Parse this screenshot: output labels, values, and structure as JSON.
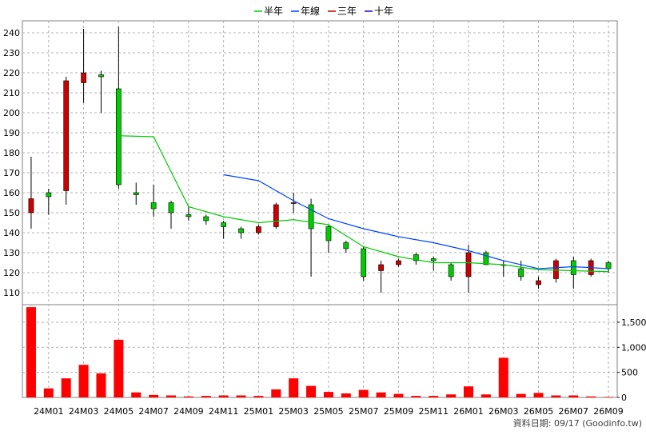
{
  "chart_data": {
    "type": "candlestick",
    "legend": {
      "placement": "top-center",
      "items": [
        {
          "name": "半年",
          "color": "#00cc00"
        },
        {
          "name": "年線",
          "color": "#0044ff"
        },
        {
          "name": "三年",
          "color": "#cc0000"
        },
        {
          "name": "十年",
          "color": "#3300cc"
        }
      ]
    },
    "price_axis": {
      "ylim": [
        104,
        246
      ],
      "ticks": [
        110,
        120,
        130,
        140,
        150,
        160,
        170,
        180,
        190,
        200,
        210,
        220,
        230,
        240
      ],
      "side": "left",
      "grid": true
    },
    "volume_axis": {
      "ylim": [
        0,
        1850
      ],
      "ticks": [
        0,
        500,
        1000,
        1500
      ],
      "tick_labels": [
        "0",
        "500",
        "1,000",
        "1,500"
      ],
      "side": "right",
      "grid": true
    },
    "x_labels": [
      "24M01",
      "24M03",
      "24M05",
      "24M07",
      "24M09",
      "24M11",
      "25M01",
      "25M03",
      "25M05",
      "25M07",
      "25M09",
      "25M11",
      "26M01",
      "26M03",
      "26M05",
      "26M07",
      "26M09"
    ],
    "x_label_slots": [
      1,
      3,
      5,
      7,
      9,
      11,
      13,
      15,
      17,
      19,
      21,
      23,
      25,
      27,
      29,
      31,
      33
    ],
    "slot_count": 34,
    "up_color": "#cc0000",
    "down_color": "#00cc00",
    "candles": [
      {
        "o": 150,
        "h": 178,
        "l": 142,
        "c": 157,
        "v": 1800
      },
      {
        "o": 160,
        "h": 162,
        "l": 149,
        "c": 158,
        "v": 180
      },
      {
        "o": 161,
        "h": 218,
        "l": 154,
        "c": 216,
        "v": 380
      },
      {
        "o": 215,
        "h": 242,
        "l": 205,
        "c": 220,
        "v": 650
      },
      {
        "o": 219,
        "h": 221,
        "l": 200,
        "c": 218,
        "v": 480
      },
      {
        "o": 212,
        "h": 243,
        "l": 162,
        "c": 164,
        "v": 1150
      },
      {
        "o": 160,
        "h": 165,
        "l": 154,
        "c": 159,
        "v": 100
      },
      {
        "o": 155,
        "h": 164,
        "l": 148,
        "c": 152,
        "v": 50
      },
      {
        "o": 155,
        "h": 156,
        "l": 142,
        "c": 150,
        "v": 40
      },
      {
        "o": 149,
        "h": 153,
        "l": 146,
        "c": 148,
        "v": 20
      },
      {
        "o": 148,
        "h": 149,
        "l": 144,
        "c": 146,
        "v": 30
      },
      {
        "o": 145,
        "h": 146,
        "l": 137,
        "c": 143,
        "v": 40
      },
      {
        "o": 142,
        "h": 143,
        "l": 137,
        "c": 140,
        "v": 40
      },
      {
        "o": 140,
        "h": 144,
        "l": 139,
        "c": 143,
        "v": 30
      },
      {
        "o": 143,
        "h": 155,
        "l": 142,
        "c": 154,
        "v": 160
      },
      {
        "o": 155,
        "h": 160,
        "l": 150,
        "c": 155,
        "v": 380
      },
      {
        "o": 154,
        "h": 157,
        "l": 118,
        "c": 142,
        "v": 230
      },
      {
        "o": 143,
        "h": 144,
        "l": 130,
        "c": 136,
        "v": 110
      },
      {
        "o": 135,
        "h": 136,
        "l": 130,
        "c": 132,
        "v": 80
      },
      {
        "o": 132,
        "h": 133,
        "l": 116,
        "c": 118,
        "v": 150
      },
      {
        "o": 121,
        "h": 126,
        "l": 110,
        "c": 124,
        "v": 100
      },
      {
        "o": 124,
        "h": 127,
        "l": 123,
        "c": 126,
        "v": 70
      },
      {
        "o": 129,
        "h": 130,
        "l": 124,
        "c": 126,
        "v": 30
      },
      {
        "o": 127,
        "h": 128,
        "l": 121,
        "c": 126,
        "v": 30
      },
      {
        "o": 124,
        "h": 125,
        "l": 116,
        "c": 118,
        "v": 60
      },
      {
        "o": 118,
        "h": 134,
        "l": 110,
        "c": 130,
        "v": 220
      },
      {
        "o": 130,
        "h": 131,
        "l": 124,
        "c": 124,
        "v": 60
      },
      {
        "o": 124,
        "h": 126,
        "l": 118,
        "c": 124,
        "v": 790
      },
      {
        "o": 122,
        "h": 126,
        "l": 116,
        "c": 118,
        "v": 70
      },
      {
        "o": 114,
        "h": 118,
        "l": 112,
        "c": 116,
        "v": 90
      },
      {
        "o": 117,
        "h": 127,
        "l": 115,
        "c": 126,
        "v": 40
      },
      {
        "o": 126,
        "h": 128,
        "l": 112,
        "c": 119,
        "v": 40
      },
      {
        "o": 119,
        "h": 127,
        "l": 118,
        "c": 126,
        "v": 20
      },
      {
        "o": 125,
        "h": 126,
        "l": 120,
        "c": 122,
        "v": 10
      }
    ],
    "series": [
      {
        "name": "半年",
        "color": "#00cc00",
        "points": [
          [
            5,
            188.5
          ],
          [
            7,
            188
          ],
          [
            9,
            153
          ],
          [
            11,
            148
          ],
          [
            13,
            145
          ],
          [
            15,
            146.5
          ],
          [
            17,
            144
          ],
          [
            19,
            133
          ],
          [
            21,
            128
          ],
          [
            23,
            125
          ],
          [
            25,
            125
          ],
          [
            27,
            124
          ],
          [
            29,
            121.5
          ],
          [
            31,
            121
          ],
          [
            33,
            120.5
          ]
        ]
      },
      {
        "name": "年線",
        "color": "#0044ff",
        "points": [
          [
            11,
            169
          ],
          [
            13,
            166
          ],
          [
            15,
            156
          ],
          [
            17,
            147
          ],
          [
            19,
            142
          ],
          [
            21,
            138
          ],
          [
            23,
            135
          ],
          [
            25,
            131
          ],
          [
            27,
            126
          ],
          [
            29,
            122
          ],
          [
            31,
            123
          ],
          [
            33,
            122
          ]
        ]
      }
    ],
    "footer_note": "資料日期: 09/17  (Goodinfo.tw)"
  }
}
